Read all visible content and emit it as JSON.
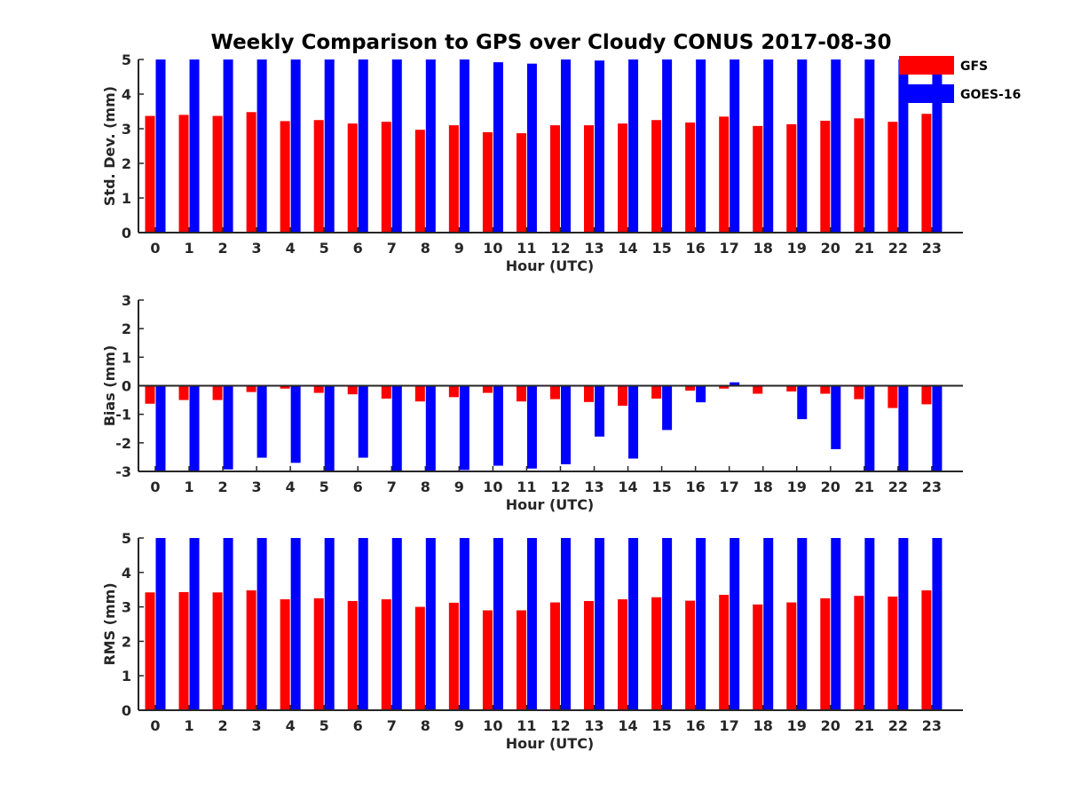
{
  "figure": {
    "title": "Weekly Comparison to GPS over Cloudy CONUS 2017-08-30"
  },
  "legend": {
    "placement": "top-right",
    "items": [
      {
        "label": "GFS",
        "color": "#ff0000"
      },
      {
        "label": "GOES-16",
        "color": "#0000ff"
      }
    ]
  },
  "chart_data": [
    {
      "type": "bar",
      "xlabel": "Hour (UTC)",
      "ylabel": "Std. Dev. (mm)",
      "ylim": [
        0,
        5
      ],
      "yticks": [
        0,
        1,
        2,
        3,
        4,
        5
      ],
      "categories": [
        "0",
        "1",
        "2",
        "3",
        "4",
        "5",
        "6",
        "7",
        "8",
        "9",
        "10",
        "11",
        "12",
        "13",
        "14",
        "15",
        "16",
        "17",
        "18",
        "19",
        "20",
        "21",
        "22",
        "23"
      ],
      "series": [
        {
          "name": "GFS",
          "color": "#ff0000",
          "values": [
            3.37,
            3.4,
            3.37,
            3.48,
            3.22,
            3.25,
            3.15,
            3.2,
            2.97,
            3.1,
            2.9,
            2.87,
            3.1,
            3.1,
            3.15,
            3.25,
            3.18,
            3.35,
            3.08,
            3.13,
            3.23,
            3.3,
            3.2,
            3.43
          ]
        },
        {
          "name": "GOES-16",
          "color": "#0000ff",
          "values": [
            5,
            5,
            5,
            5,
            5,
            5,
            5,
            5,
            5,
            5,
            4.92,
            4.88,
            5,
            4.97,
            5,
            5,
            5,
            5,
            5,
            5,
            5,
            5,
            5,
            5
          ]
        }
      ]
    },
    {
      "type": "bar",
      "xlabel": "Hour (UTC)",
      "ylabel": "Bias (mm)",
      "ylim": [
        -3,
        3
      ],
      "yticks": [
        -3,
        -2,
        -1,
        0,
        1,
        2,
        3
      ],
      "categories": [
        "0",
        "1",
        "2",
        "3",
        "4",
        "5",
        "6",
        "7",
        "8",
        "9",
        "10",
        "11",
        "12",
        "13",
        "14",
        "15",
        "16",
        "17",
        "18",
        "19",
        "20",
        "21",
        "22",
        "23"
      ],
      "series": [
        {
          "name": "GFS",
          "color": "#ff0000",
          "values": [
            -0.63,
            -0.5,
            -0.5,
            -0.22,
            -0.1,
            -0.25,
            -0.3,
            -0.45,
            -0.55,
            -0.4,
            -0.25,
            -0.55,
            -0.47,
            -0.57,
            -0.7,
            -0.45,
            -0.17,
            -0.1,
            -0.28,
            -0.2,
            -0.28,
            -0.47,
            -0.78,
            -0.65
          ]
        },
        {
          "name": "GOES-16",
          "color": "#0000ff",
          "values": [
            -3,
            -3,
            -2.93,
            -2.52,
            -2.7,
            -3,
            -2.52,
            -3,
            -3,
            -2.95,
            -2.8,
            -2.9,
            -2.75,
            -1.78,
            -2.55,
            -1.55,
            -0.58,
            0.12,
            0,
            -1.17,
            -2.22,
            -3,
            -3,
            -3
          ]
        }
      ]
    },
    {
      "type": "bar",
      "xlabel": "Hour (UTC)",
      "ylabel": "RMS (mm)",
      "ylim": [
        0,
        5
      ],
      "yticks": [
        0,
        1,
        2,
        3,
        4,
        5
      ],
      "categories": [
        "0",
        "1",
        "2",
        "3",
        "4",
        "5",
        "6",
        "7",
        "8",
        "9",
        "10",
        "11",
        "12",
        "13",
        "14",
        "15",
        "16",
        "17",
        "18",
        "19",
        "20",
        "21",
        "22",
        "23"
      ],
      "series": [
        {
          "name": "GFS",
          "color": "#ff0000",
          "values": [
            3.42,
            3.43,
            3.42,
            3.48,
            3.22,
            3.25,
            3.17,
            3.22,
            3.0,
            3.12,
            2.9,
            2.9,
            3.13,
            3.17,
            3.22,
            3.28,
            3.18,
            3.35,
            3.07,
            3.13,
            3.25,
            3.32,
            3.3,
            3.48
          ]
        },
        {
          "name": "GOES-16",
          "color": "#0000ff",
          "values": [
            5,
            5,
            5,
            5,
            5,
            5,
            5,
            5,
            5,
            5,
            5,
            5,
            5,
            5,
            5,
            5,
            5,
            5,
            5,
            5,
            5,
            5,
            5,
            5
          ]
        }
      ]
    }
  ]
}
